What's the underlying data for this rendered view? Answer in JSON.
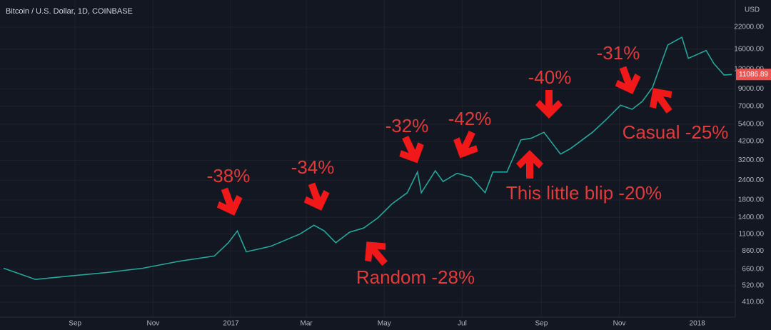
{
  "chart_data": {
    "type": "line",
    "title": "Bitcoin / U.S. Dollar, 1D, COINBASE",
    "currency": "USD",
    "last_price_label": "11086.89",
    "log_scale": true,
    "grid": true,
    "x": [
      0,
      25,
      53,
      81,
      109,
      137,
      165,
      176,
      183,
      190,
      209,
      232,
      243,
      251,
      260,
      271,
      282,
      293,
      304,
      316,
      324,
      327,
      338,
      344,
      355,
      366,
      377,
      383,
      394,
      405,
      413,
      423,
      436,
      444,
      461,
      472,
      483,
      492,
      500,
      508,
      520,
      531,
      536,
      550,
      556,
      564,
      570
    ],
    "series": [
      {
        "name": "BTCUSD",
        "color": "#26a69a",
        "values": [
          670,
          570,
          600,
          630,
          670,
          740,
          800,
          970,
          1150,
          850,
          920,
          1100,
          1250,
          1150,
          970,
          1130,
          1200,
          1390,
          1700,
          2000,
          2700,
          2000,
          2750,
          2350,
          2650,
          2500,
          2000,
          2700,
          2700,
          4300,
          4400,
          4800,
          3500,
          3800,
          4800,
          5800,
          7100,
          6700,
          7500,
          9200,
          17000,
          19000,
          14000,
          15700,
          13000,
          11000,
          11087
        ]
      }
    ],
    "xlim": [
      0,
      570
    ],
    "xticks": [
      {
        "value": 56,
        "label": "Sep"
      },
      {
        "value": 117,
        "label": "Nov"
      },
      {
        "value": 178,
        "label": "2017"
      },
      {
        "value": 237,
        "label": "Mar"
      },
      {
        "value": 298,
        "label": "May"
      },
      {
        "value": 359,
        "label": "Jul"
      },
      {
        "value": 421,
        "label": "Sep"
      },
      {
        "value": 482,
        "label": "Nov"
      },
      {
        "value": 543,
        "label": "2018"
      }
    ],
    "ylim": [
      330,
      32600
    ],
    "yticks": [
      {
        "value": 410,
        "label": "410.00"
      },
      {
        "value": 520,
        "label": "520.00"
      },
      {
        "value": 660,
        "label": "660.00"
      },
      {
        "value": 860,
        "label": "860.00"
      },
      {
        "value": 1100,
        "label": "1100.00"
      },
      {
        "value": 1400,
        "label": "1400.00"
      },
      {
        "value": 1800,
        "label": "1800.00"
      },
      {
        "value": 2400,
        "label": "2400.00"
      },
      {
        "value": 3200,
        "label": "3200.00"
      },
      {
        "value": 4200,
        "label": "4200.00"
      },
      {
        "value": 5400,
        "label": "5400.00"
      },
      {
        "value": 7000,
        "label": "7000.00"
      },
      {
        "value": 9000,
        "label": "9000.00"
      },
      {
        "value": 12000,
        "label": "12000.00"
      },
      {
        "value": 16000,
        "label": "16000.00"
      },
      {
        "value": 22000,
        "label": "22000.00"
      }
    ],
    "annotations": [
      "-38%",
      "-34%",
      "-32%",
      "-42%",
      "-40%",
      "-31%",
      "Casual -25%",
      "This little blip -20%",
      "Random -28%"
    ]
  }
}
